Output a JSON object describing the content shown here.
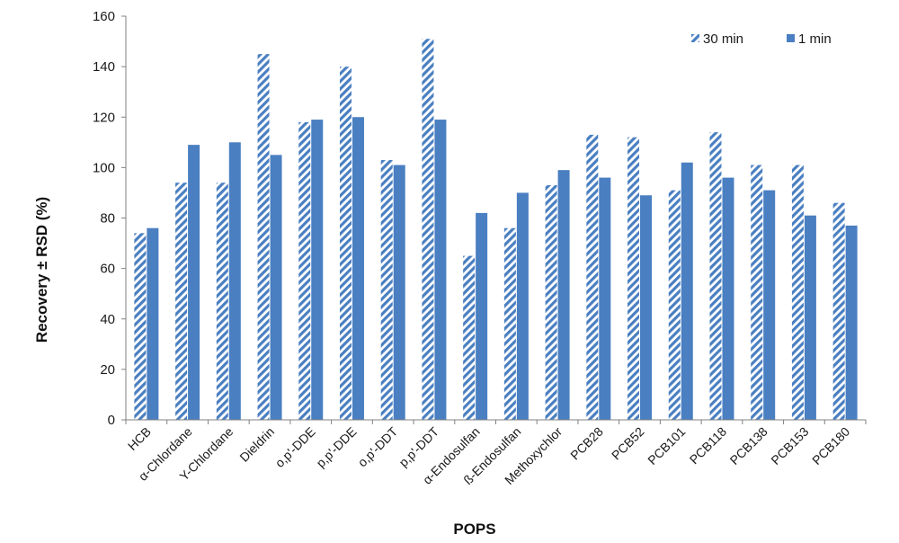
{
  "chart_data": {
    "type": "bar",
    "title": "",
    "xlabel": "POPS",
    "ylabel": "Recovery ± RSD (%)",
    "ylim": [
      0,
      160
    ],
    "yticks": [
      0,
      20,
      40,
      60,
      80,
      100,
      120,
      140,
      160
    ],
    "grid": false,
    "legend_position": "top-right",
    "categories": [
      "HCB",
      "α-Chlordane",
      "Υ-Chlordane",
      "Dieldrin",
      "o,p'-DDE",
      "p,p'-DDE",
      "o,p'-DDT",
      "p,p'-DDT",
      "α-Endosulfan",
      "ß-Endosulfan",
      "Methoxychlor",
      "PCB28",
      "PCB52",
      "PCB101",
      "PCB118",
      "PCB138",
      "PCB153",
      "PCB180"
    ],
    "series": [
      {
        "name": "30 min",
        "pattern": "diagonal-hatch",
        "color": "#4a7fc1",
        "values": [
          74,
          94,
          94,
          145,
          118,
          140,
          103,
          151,
          65,
          76,
          93,
          113,
          112,
          91,
          114,
          101,
          101,
          86
        ]
      },
      {
        "name": "1 min",
        "pattern": "solid",
        "color": "#4a7fc1",
        "values": [
          76,
          109,
          110,
          105,
          119,
          120,
          101,
          119,
          82,
          90,
          99,
          96,
          89,
          102,
          96,
          91,
          81,
          77
        ]
      }
    ]
  }
}
